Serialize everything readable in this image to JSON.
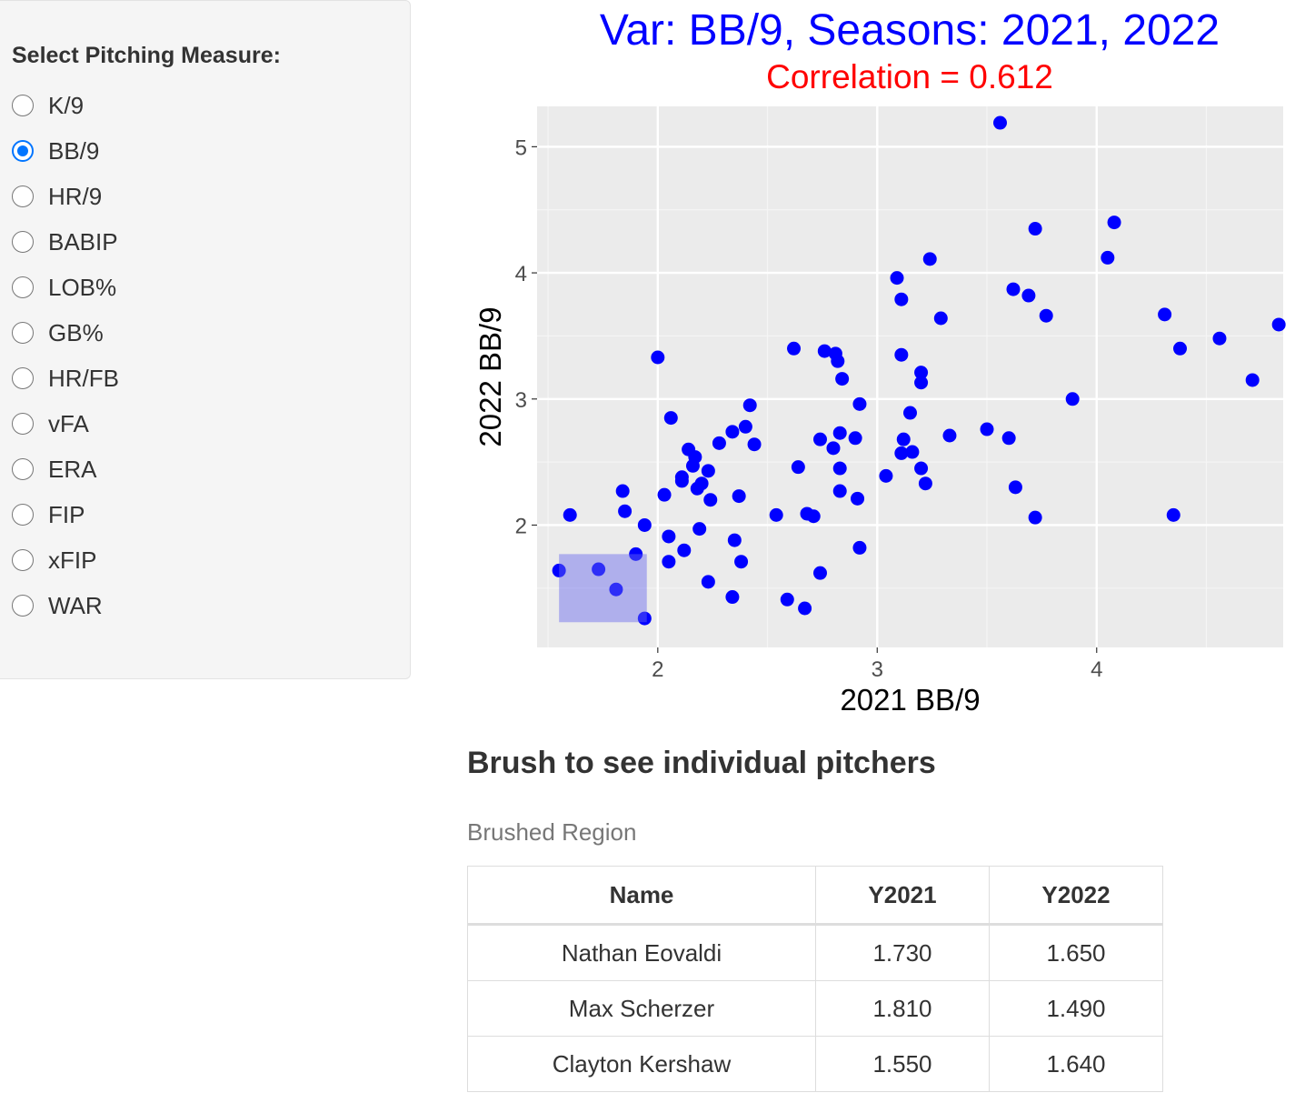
{
  "sidebar": {
    "title": "Select Pitching Measure:",
    "selected": "BB/9",
    "options": [
      "K/9",
      "BB/9",
      "HR/9",
      "BABIP",
      "LOB%",
      "GB%",
      "HR/FB",
      "vFA",
      "ERA",
      "FIP",
      "xFIP",
      "WAR"
    ]
  },
  "chart": {
    "title": "Var: BB/9, Seasons: 2021, 2022",
    "subtitle": "Correlation = 0.612"
  },
  "colors": {
    "points": "#0000ff",
    "title": "#0000ff",
    "subtitle": "#ff0000",
    "panel": "#ebebeb",
    "brush": "#b2b2f2",
    "radio_checked": "#0075ff"
  },
  "chart_data": {
    "type": "scatter",
    "title": "Var: BB/9, Seasons: 2021, 2022",
    "subtitle": "Correlation = 0.612",
    "xlabel": "2021 BB/9",
    "ylabel": "2022 BB/9",
    "xlim": [
      1.45,
      4.85
    ],
    "ylim": [
      1.03,
      5.32
    ],
    "xticks": [
      2,
      3,
      4
    ],
    "yticks": [
      2,
      3,
      4,
      5
    ],
    "grid": true,
    "brush": {
      "x": [
        1.55,
        1.95
      ],
      "y": [
        1.23,
        1.77
      ]
    },
    "points": [
      [
        1.55,
        1.64
      ],
      [
        1.6,
        2.08
      ],
      [
        1.73,
        1.65
      ],
      [
        1.81,
        1.49
      ],
      [
        1.84,
        2.27
      ],
      [
        1.85,
        2.11
      ],
      [
        1.9,
        1.77
      ],
      [
        1.94,
        1.26
      ],
      [
        1.94,
        2.0
      ],
      [
        2.0,
        3.33
      ],
      [
        2.03,
        2.24
      ],
      [
        2.05,
        1.91
      ],
      [
        2.05,
        1.71
      ],
      [
        2.06,
        2.85
      ],
      [
        2.11,
        2.35
      ],
      [
        2.11,
        2.38
      ],
      [
        2.12,
        1.8
      ],
      [
        2.14,
        2.6
      ],
      [
        2.16,
        2.47
      ],
      [
        2.17,
        2.54
      ],
      [
        2.18,
        2.29
      ],
      [
        2.19,
        1.97
      ],
      [
        2.2,
        2.33
      ],
      [
        2.23,
        2.43
      ],
      [
        2.23,
        1.55
      ],
      [
        2.24,
        2.2
      ],
      [
        2.28,
        2.65
      ],
      [
        2.34,
        2.74
      ],
      [
        2.34,
        1.43
      ],
      [
        2.35,
        1.88
      ],
      [
        2.37,
        2.23
      ],
      [
        2.38,
        1.71
      ],
      [
        2.4,
        2.78
      ],
      [
        2.42,
        2.95
      ],
      [
        2.44,
        2.64
      ],
      [
        2.54,
        2.08
      ],
      [
        2.59,
        1.41
      ],
      [
        2.62,
        3.4
      ],
      [
        2.64,
        2.46
      ],
      [
        2.67,
        1.34
      ],
      [
        2.68,
        2.09
      ],
      [
        2.71,
        2.07
      ],
      [
        2.74,
        2.68
      ],
      [
        2.74,
        1.62
      ],
      [
        2.76,
        3.38
      ],
      [
        2.8,
        2.61
      ],
      [
        2.81,
        3.36
      ],
      [
        2.82,
        3.3
      ],
      [
        2.83,
        2.73
      ],
      [
        2.83,
        2.45
      ],
      [
        2.83,
        2.27
      ],
      [
        2.84,
        3.16
      ],
      [
        2.9,
        2.69
      ],
      [
        2.91,
        2.21
      ],
      [
        2.92,
        2.96
      ],
      [
        2.92,
        1.82
      ],
      [
        3.04,
        2.39
      ],
      [
        3.09,
        3.96
      ],
      [
        3.11,
        3.79
      ],
      [
        3.11,
        3.35
      ],
      [
        3.11,
        2.57
      ],
      [
        3.12,
        2.68
      ],
      [
        3.15,
        2.89
      ],
      [
        3.16,
        2.58
      ],
      [
        3.2,
        3.21
      ],
      [
        3.2,
        3.13
      ],
      [
        3.2,
        2.45
      ],
      [
        3.22,
        2.33
      ],
      [
        3.24,
        4.11
      ],
      [
        3.29,
        3.64
      ],
      [
        3.33,
        2.71
      ],
      [
        3.5,
        2.76
      ],
      [
        3.56,
        5.19
      ],
      [
        3.6,
        2.69
      ],
      [
        3.62,
        3.87
      ],
      [
        3.63,
        2.3
      ],
      [
        3.69,
        3.82
      ],
      [
        3.72,
        2.06
      ],
      [
        3.72,
        4.35
      ],
      [
        3.77,
        3.66
      ],
      [
        3.89,
        3.0
      ],
      [
        4.05,
        4.12
      ],
      [
        4.08,
        4.4
      ],
      [
        4.31,
        3.67
      ],
      [
        4.35,
        2.08
      ],
      [
        4.38,
        3.4
      ],
      [
        4.56,
        3.48
      ],
      [
        4.71,
        3.15
      ],
      [
        4.83,
        3.59
      ]
    ]
  },
  "brush_section": {
    "heading": "Brush to see individual pitchers",
    "subheading": "Brushed Region",
    "table": {
      "headers": [
        "Name",
        "Y2021",
        "Y2022"
      ],
      "rows": [
        [
          "Nathan Eovaldi",
          "1.730",
          "1.650"
        ],
        [
          "Max Scherzer",
          "1.810",
          "1.490"
        ],
        [
          "Clayton Kershaw",
          "1.550",
          "1.640"
        ]
      ]
    }
  }
}
